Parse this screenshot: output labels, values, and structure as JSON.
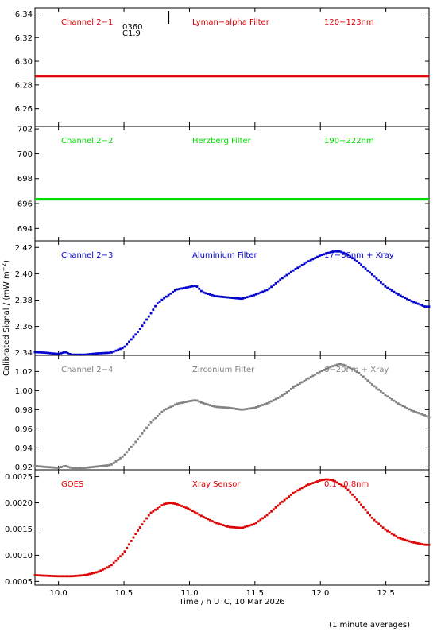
{
  "chart_data": {
    "type": "scatter",
    "x_axis": {
      "label": "Time / h UTC, 10 Mar 2026",
      "range": [
        9.82,
        12.83
      ],
      "ticks": [
        10.0,
        10.5,
        11.0,
        11.5,
        12.0,
        12.5
      ],
      "tick_labels": [
        "10.0",
        "10.5",
        "11.0",
        "11.5",
        "12.0",
        "12.5"
      ]
    },
    "y_axis_label": "Calibrated Signal / (mW m",
    "y_axis_label_sup": "−2",
    "y_axis_label_end": ")",
    "footnote": "(1 minute averages)",
    "marker_annotation": {
      "x": 10.84,
      "lines": [
        "0360",
        "C1.9"
      ]
    },
    "panels": [
      {
        "id": "ch1",
        "color": "#dd0000",
        "labels": [
          "Channel 2−1",
          "Lyman−alpha Filter",
          "120−123nm"
        ],
        "ylim": [
          6.245,
          6.345
        ],
        "ticks": [
          6.26,
          6.28,
          6.3,
          6.32,
          6.34
        ],
        "tick_labels": [
          "6.26",
          "6.28",
          "6.30",
          "6.32",
          "6.34"
        ],
        "series_shape": "flat",
        "x": [
          9.82,
          12.83
        ],
        "y": [
          6.2875,
          6.2875
        ]
      },
      {
        "id": "ch2",
        "color": "#00dd00",
        "labels": [
          "Channel 2−2",
          "Herzberg Filter",
          "190−222nm"
        ],
        "ylim": [
          693.0,
          702.2
        ],
        "ticks": [
          694,
          696,
          698,
          700,
          702
        ],
        "tick_labels": [
          "694",
          "696",
          "698",
          "700",
          "702"
        ],
        "series_shape": "flat",
        "x": [
          9.82,
          12.83
        ],
        "y": [
          696.35,
          696.35
        ]
      },
      {
        "id": "ch3",
        "color": "#0000cc",
        "labels": [
          "Channel 2−3",
          "Aluminium Filter",
          "17−80nm + Xray"
        ],
        "ylim": [
          2.338,
          2.425
        ],
        "ticks": [
          2.34,
          2.36,
          2.38,
          2.4,
          2.42
        ],
        "tick_labels": [
          "2.34",
          "2.36",
          "2.38",
          "2.40",
          "2.42"
        ],
        "series_shape": "curve",
        "x": [
          9.82,
          9.9,
          10.0,
          10.05,
          10.1,
          10.2,
          10.3,
          10.4,
          10.5,
          10.6,
          10.7,
          10.75,
          10.8,
          10.9,
          11.0,
          11.05,
          11.1,
          11.2,
          11.3,
          11.4,
          11.5,
          11.6,
          11.7,
          11.8,
          11.9,
          12.0,
          12.1,
          12.15,
          12.2,
          12.3,
          12.4,
          12.5,
          12.6,
          12.7,
          12.8,
          12.83
        ],
        "y": [
          2.3405,
          2.34,
          2.339,
          2.3405,
          2.3385,
          2.3385,
          2.3395,
          2.34,
          2.344,
          2.355,
          2.369,
          2.377,
          2.381,
          2.388,
          2.39,
          2.391,
          2.386,
          2.383,
          2.382,
          2.381,
          2.384,
          2.388,
          2.396,
          2.403,
          2.409,
          2.414,
          2.417,
          2.417,
          2.415,
          2.408,
          2.399,
          2.39,
          2.384,
          2.379,
          2.375,
          2.375
        ]
      },
      {
        "id": "ch4",
        "color": "#808080",
        "labels": [
          "Channel 2−4",
          "Zirconium Filter",
          "6−20nm + Xray"
        ],
        "ylim": [
          0.917,
          1.037
        ],
        "ticks": [
          0.92,
          0.94,
          0.96,
          0.98,
          1.0,
          1.02
        ],
        "tick_labels": [
          "0.92",
          "0.94",
          "0.96",
          "0.98",
          "1.00",
          "1.02"
        ],
        "series_shape": "curve",
        "x": [
          9.82,
          9.9,
          10.0,
          10.05,
          10.1,
          10.2,
          10.3,
          10.4,
          10.5,
          10.6,
          10.7,
          10.8,
          10.9,
          11.0,
          11.05,
          11.1,
          11.2,
          11.3,
          11.4,
          11.5,
          11.6,
          11.7,
          11.8,
          11.9,
          12.0,
          12.1,
          12.15,
          12.2,
          12.3,
          12.4,
          12.5,
          12.6,
          12.7,
          12.8,
          12.83
        ],
        "y": [
          0.921,
          0.92,
          0.919,
          0.921,
          0.919,
          0.919,
          0.9205,
          0.922,
          0.932,
          0.948,
          0.966,
          0.979,
          0.986,
          0.989,
          0.99,
          0.987,
          0.983,
          0.982,
          0.98,
          0.982,
          0.987,
          0.994,
          1.004,
          1.012,
          1.02,
          1.026,
          1.028,
          1.026,
          1.018,
          1.006,
          0.995,
          0.986,
          0.979,
          0.974,
          0.972
        ]
      },
      {
        "id": "goes",
        "color": "#dd0000",
        "labels": [
          "GOES",
          "Xray Sensor",
          "0.1−0.8nm"
        ],
        "ylim": [
          0.00043,
          0.00263
        ],
        "ticks": [
          0.0005,
          0.001,
          0.0015,
          0.002,
          0.0025
        ],
        "tick_labels": [
          "0.0005",
          "0.0010",
          "0.0015",
          "0.0020",
          "0.0025"
        ],
        "series_shape": "curve",
        "x": [
          9.82,
          9.9,
          10.0,
          10.1,
          10.2,
          10.3,
          10.4,
          10.5,
          10.6,
          10.7,
          10.8,
          10.85,
          10.9,
          11.0,
          11.1,
          11.2,
          11.3,
          11.4,
          11.5,
          11.6,
          11.7,
          11.8,
          11.9,
          12.0,
          12.05,
          12.1,
          12.2,
          12.3,
          12.4,
          12.5,
          12.6,
          12.7,
          12.8,
          12.83
        ],
        "y": [
          0.00062,
          0.00061,
          0.0006,
          0.0006,
          0.00062,
          0.00068,
          0.0008,
          0.00105,
          0.00145,
          0.0018,
          0.00197,
          0.002,
          0.00198,
          0.00188,
          0.00174,
          0.00162,
          0.00154,
          0.00152,
          0.0016,
          0.00178,
          0.002,
          0.0022,
          0.00234,
          0.00243,
          0.00245,
          0.00243,
          0.00228,
          0.002,
          0.0017,
          0.00148,
          0.00133,
          0.00125,
          0.0012,
          0.0012
        ]
      }
    ]
  }
}
